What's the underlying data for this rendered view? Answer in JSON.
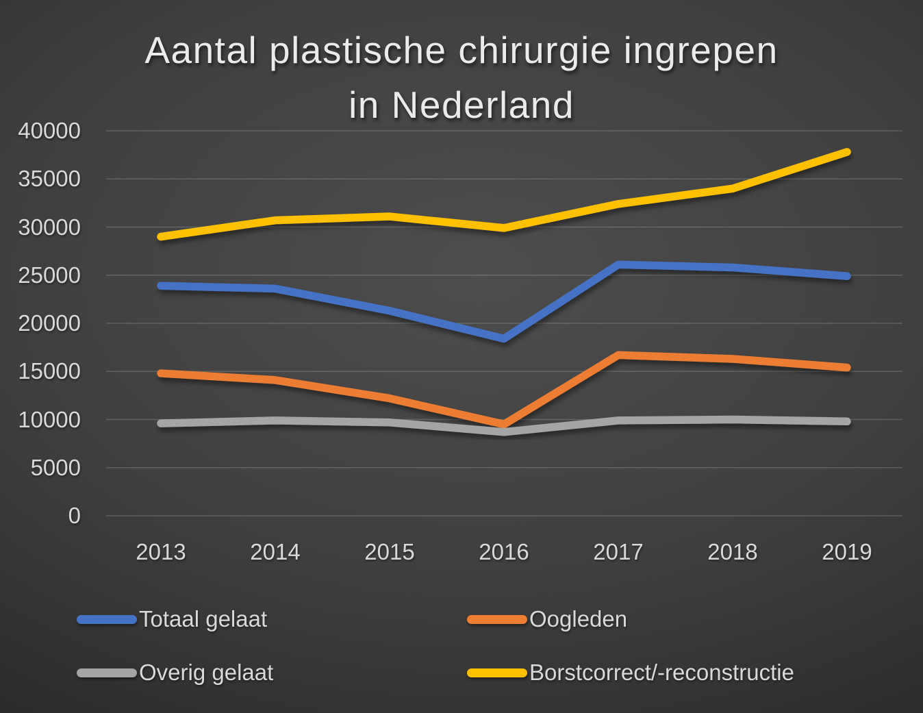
{
  "title": "Aantal plastische chirurgie ingrepen in Nederland",
  "chart_data": {
    "type": "line",
    "title": "Aantal plastische chirurgie ingrepen in Nederland",
    "categories": [
      "2013",
      "2014",
      "2015",
      "2016",
      "2017",
      "2018",
      "2019"
    ],
    "series": [
      {
        "name": "Totaal gelaat",
        "color": "#4472C4",
        "values": [
          23900,
          23600,
          21300,
          18400,
          26100,
          25800,
          24900
        ]
      },
      {
        "name": "Oogleden",
        "color": "#ED7D31",
        "values": [
          14800,
          14100,
          12200,
          9500,
          16700,
          16300,
          15400
        ]
      },
      {
        "name": "Overig gelaat",
        "color": "#A5A5A5",
        "values": [
          9600,
          9900,
          9700,
          8700,
          9900,
          10000,
          9800
        ]
      },
      {
        "name": "Borstcorrect/-reconstructie",
        "color": "#FFC000",
        "values": [
          29000,
          30700,
          31100,
          29900,
          32400,
          34000,
          37800
        ]
      }
    ],
    "xlabel": "",
    "ylabel": "",
    "ylim": [
      0,
      40000
    ],
    "y_tick_step": 5000,
    "y_ticks": [
      "0",
      "5000",
      "10000",
      "15000",
      "20000",
      "25000",
      "30000",
      "35000",
      "40000"
    ],
    "grid": "horizontal",
    "legend_position": "bottom-two-columns"
  },
  "colors": {
    "title_text": "#ebebeb",
    "axis_label_text": "#d9d9d9",
    "gridline": "rgba(255,255,255,0.17)"
  }
}
